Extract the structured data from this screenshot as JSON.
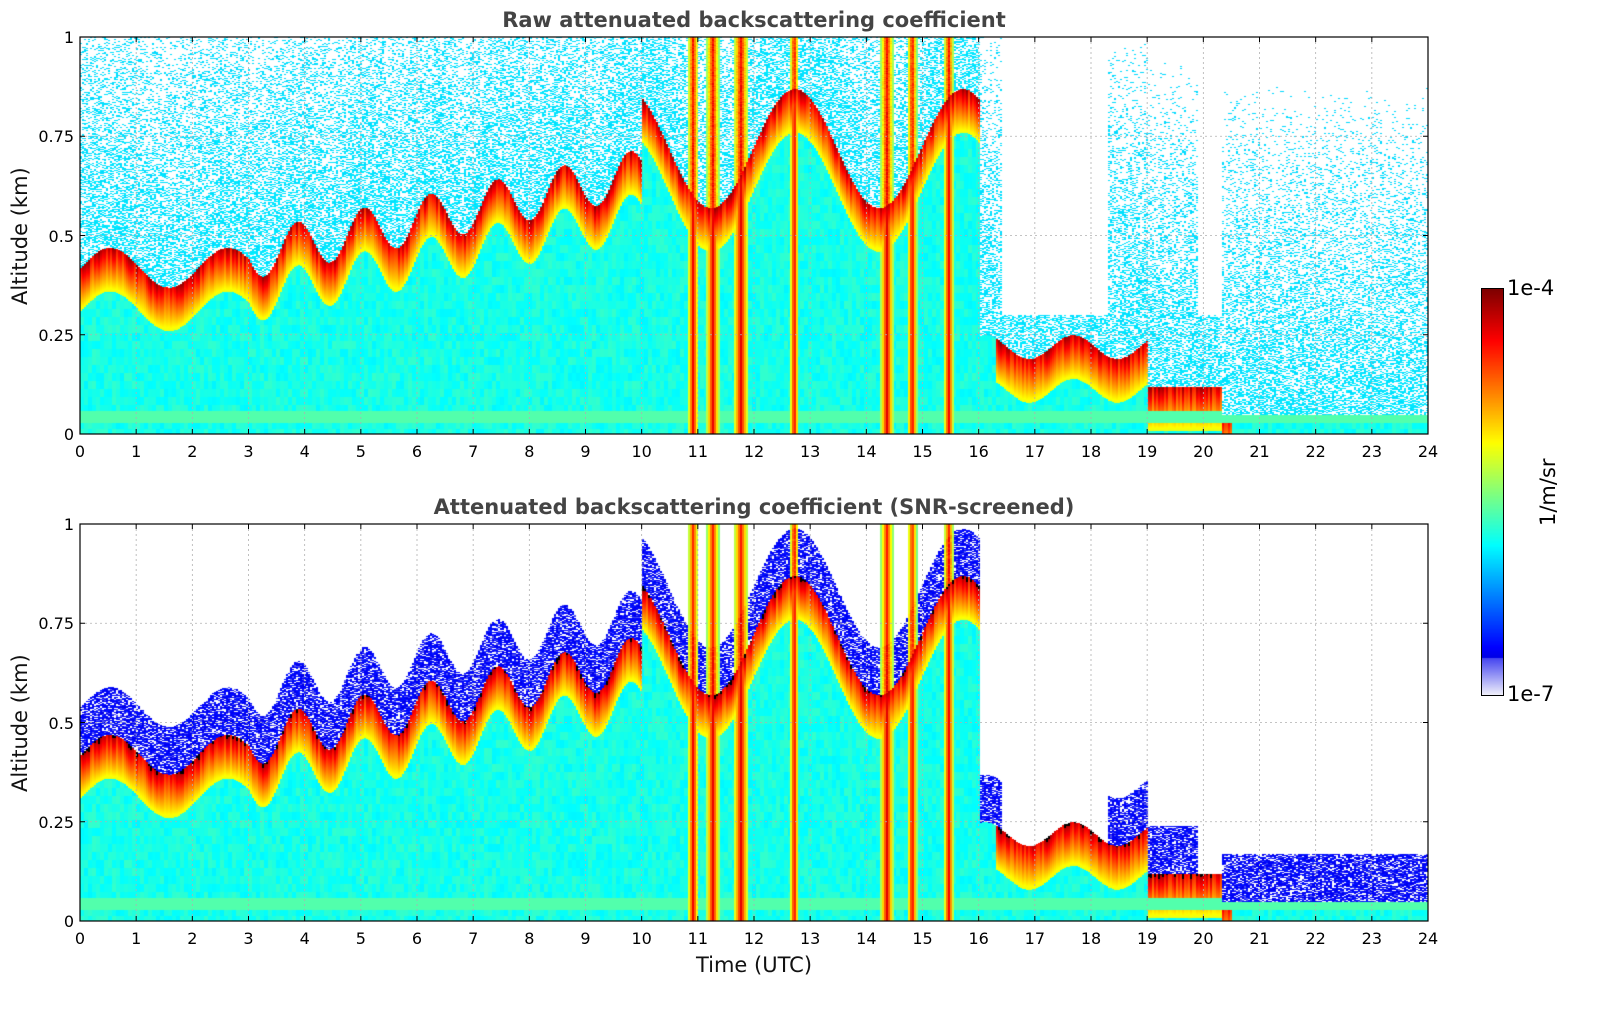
{
  "chart_data": [
    {
      "type": "heatmap",
      "title": "Raw attenuated backscattering coefficient",
      "xlabel": "",
      "ylabel": "Altitude (km)",
      "xlim": [
        0,
        24
      ],
      "ylim": [
        0,
        1
      ],
      "x_ticks": [
        "0",
        "1",
        "2",
        "3",
        "4",
        "5",
        "6",
        "7",
        "8",
        "9",
        "10",
        "11",
        "12",
        "13",
        "14",
        "15",
        "16",
        "17",
        "18",
        "19",
        "20",
        "21",
        "22",
        "23",
        "24"
      ],
      "y_ticks": [
        "0",
        "0.25",
        "0.5",
        "0.75",
        "1"
      ],
      "grid": true,
      "screened": false
    },
    {
      "type": "heatmap",
      "title": "Attenuated backscattering coefficient (SNR-screened)",
      "xlabel": "Time (UTC)",
      "ylabel": "Altitude (km)",
      "xlim": [
        0,
        24
      ],
      "ylim": [
        0,
        1
      ],
      "x_ticks": [
        "0",
        "1",
        "2",
        "3",
        "4",
        "5",
        "6",
        "7",
        "8",
        "9",
        "10",
        "11",
        "12",
        "13",
        "14",
        "15",
        "16",
        "17",
        "18",
        "19",
        "20",
        "21",
        "22",
        "23",
        "24"
      ],
      "y_ticks": [
        "0",
        "0.25",
        "0.5",
        "0.75",
        "1"
      ],
      "grid": true,
      "screened": true
    }
  ],
  "colorbar": {
    "max_label": "1e-4",
    "min_label": "1e-7",
    "unit": "1/m/sr",
    "scale": "log",
    "colormap": "jet"
  }
}
